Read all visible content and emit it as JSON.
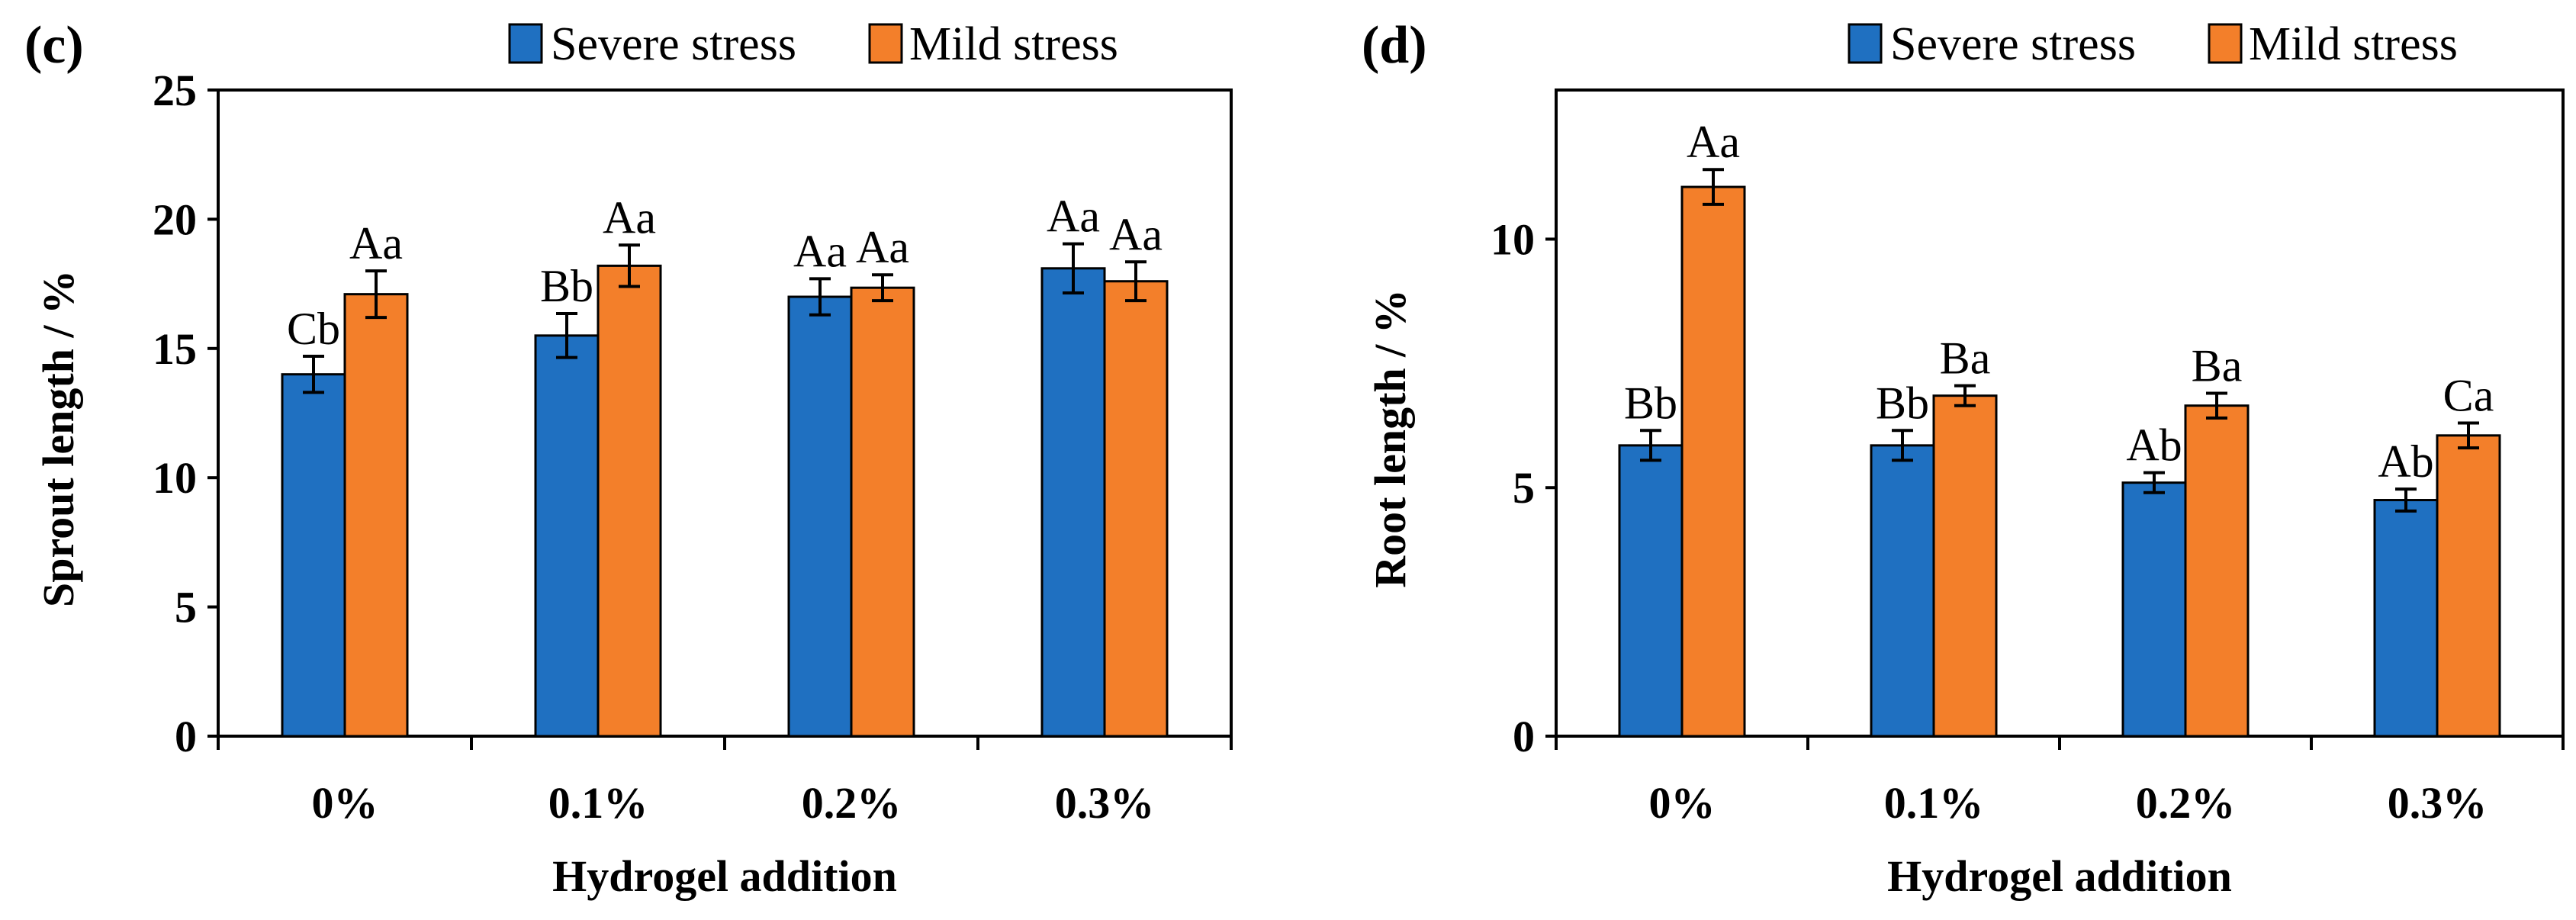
{
  "colors": {
    "severe": "#1F70C1",
    "mild": "#F37F2A",
    "axis": "#000000"
  },
  "chart_data": [
    {
      "panel": "(c)",
      "type": "bar",
      "xlabel": "Hydrogel addition",
      "ylabel": "Sprout length / %",
      "ylim": [
        0,
        25
      ],
      "yticks": [
        0,
        5,
        10,
        15,
        20,
        25
      ],
      "categories": [
        "0%",
        "0.1%",
        "0.2%",
        "0.3%"
      ],
      "legend_position": "top",
      "series": [
        {
          "name": "Severe stress",
          "color": "#1F70C1",
          "values": [
            14.0,
            15.5,
            17.0,
            18.1
          ],
          "errors": [
            0.7,
            0.85,
            0.7,
            0.95
          ],
          "labels": [
            "Cb",
            "Bb",
            "Aa",
            "Aa"
          ]
        },
        {
          "name": "Mild stress",
          "color": "#F37F2A",
          "values": [
            17.1,
            18.2,
            17.35,
            17.6
          ],
          "errors": [
            0.9,
            0.8,
            0.5,
            0.75
          ],
          "labels": [
            "Aa",
            "Aa",
            "Aa",
            "Aa"
          ]
        }
      ]
    },
    {
      "panel": "(d)",
      "type": "bar",
      "xlabel": "Hydrogel addition",
      "ylabel": "Root length / %",
      "ylim": [
        0,
        13
      ],
      "yticks": [
        0,
        5,
        10
      ],
      "categories": [
        "0%",
        "0.1%",
        "0.2%",
        "0.3%"
      ],
      "legend_position": "top",
      "series": [
        {
          "name": "Severe stress",
          "color": "#1F70C1",
          "values": [
            5.85,
            5.85,
            5.1,
            4.75
          ],
          "errors": [
            0.3,
            0.3,
            0.2,
            0.22
          ],
          "labels": [
            "Bb",
            "Bb",
            "Ab",
            "Ab"
          ]
        },
        {
          "name": "Mild stress",
          "color": "#F37F2A",
          "values": [
            11.05,
            6.85,
            6.65,
            6.05
          ],
          "errors": [
            0.35,
            0.2,
            0.25,
            0.25
          ],
          "labels": [
            "Aa",
            "Ba",
            "Ba",
            "Ca"
          ]
        }
      ]
    }
  ]
}
